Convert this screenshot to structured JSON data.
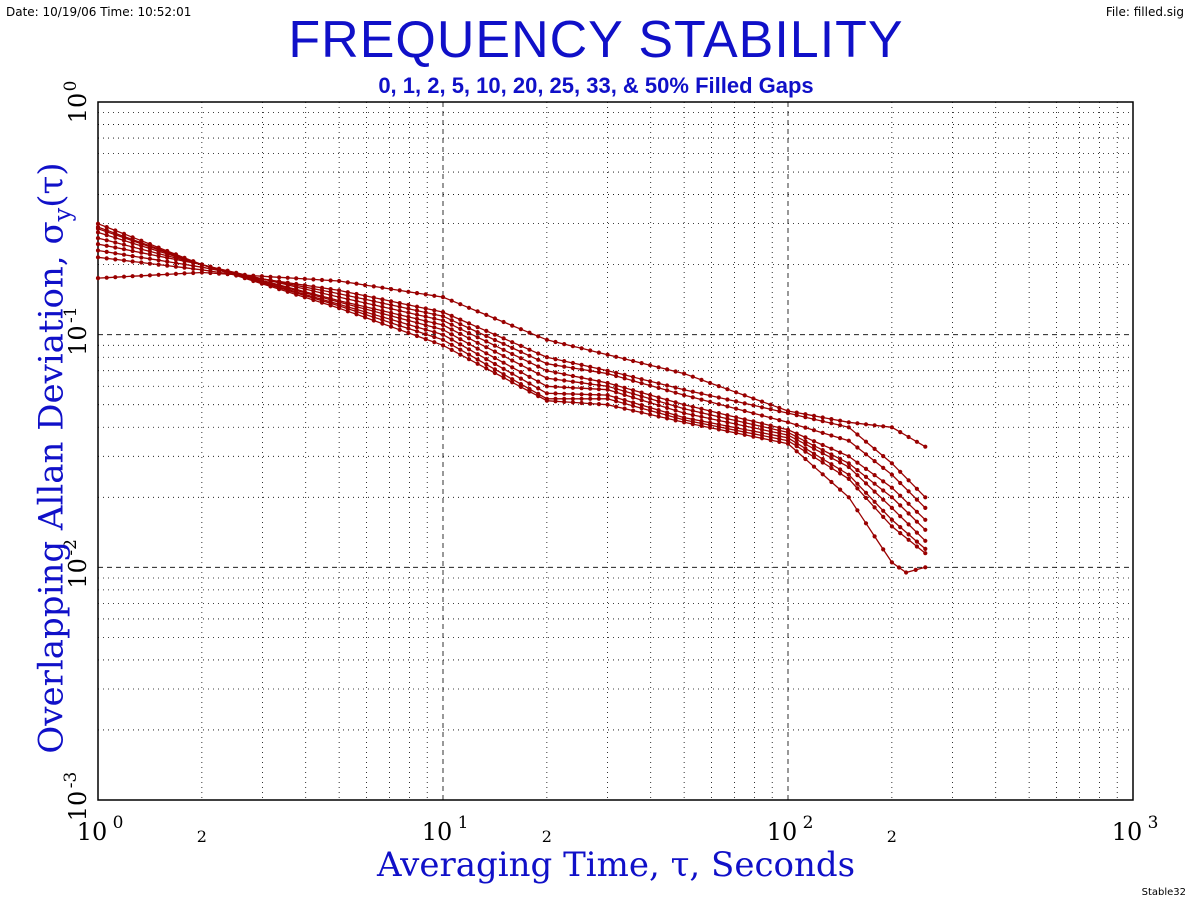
{
  "header": {
    "date_time": "Date: 10/19/06   Time: 10:52:01",
    "file": "File: filled.sig"
  },
  "footer": "Stable32",
  "chart_data": {
    "type": "line",
    "title": "FREQUENCY STABILITY",
    "subtitle": "0, 1, 2, 5, 10, 20, 25, 33, & 50% Filled Gaps",
    "xlabel": "Averaging Time, τ, Seconds",
    "ylabel": "Overlapping Allan Deviation, σy(τ)",
    "xscale": "log",
    "yscale": "log",
    "xlim": [
      1,
      1000
    ],
    "ylim": [
      0.001,
      1
    ],
    "grid": true,
    "x_ticks": [
      {
        "base": "10",
        "exp": "0",
        "value": 1
      },
      {
        "base": "",
        "exp": "2",
        "value": 2
      },
      {
        "base": "10",
        "exp": "1",
        "value": 10
      },
      {
        "base": "",
        "exp": "2",
        "value": 20
      },
      {
        "base": "10",
        "exp": "2",
        "value": 100
      },
      {
        "base": "",
        "exp": "2",
        "value": 200
      },
      {
        "base": "10",
        "exp": "3",
        "value": 1000
      }
    ],
    "y_ticks": [
      {
        "base": "10",
        "exp": "0",
        "value": 1
      },
      {
        "base": "10",
        "exp": "-1",
        "value": 0.1
      },
      {
        "base": "10",
        "exp": "-2",
        "value": 0.01
      },
      {
        "base": "10",
        "exp": "-3",
        "value": 0.001
      }
    ],
    "color": "#990000",
    "series": [
      {
        "x": [
          1,
          2,
          5,
          10,
          20,
          30,
          50,
          100,
          150,
          200,
          250
        ],
        "y": [
          0.175,
          0.185,
          0.17,
          0.145,
          0.095,
          0.082,
          0.068,
          0.047,
          0.042,
          0.04,
          0.033
        ]
      },
      {
        "x": [
          1,
          2,
          5,
          10,
          20,
          30,
          50,
          100,
          150,
          200,
          250
        ],
        "y": [
          0.215,
          0.19,
          0.155,
          0.125,
          0.08,
          0.07,
          0.058,
          0.046,
          0.04,
          0.028,
          0.02
        ]
      },
      {
        "x": [
          1,
          2,
          5,
          10,
          20,
          30,
          50,
          100,
          150,
          200,
          250
        ],
        "y": [
          0.23,
          0.195,
          0.15,
          0.12,
          0.075,
          0.068,
          0.055,
          0.042,
          0.035,
          0.025,
          0.018
        ]
      },
      {
        "x": [
          1,
          2,
          5,
          10,
          20,
          30,
          50,
          100,
          150,
          200,
          250
        ],
        "y": [
          0.245,
          0.2,
          0.145,
          0.115,
          0.07,
          0.062,
          0.05,
          0.039,
          0.03,
          0.022,
          0.016
        ]
      },
      {
        "x": [
          1,
          2,
          5,
          10,
          20,
          30,
          50,
          100,
          150,
          200,
          250
        ],
        "y": [
          0.26,
          0.2,
          0.14,
          0.11,
          0.065,
          0.06,
          0.048,
          0.038,
          0.028,
          0.02,
          0.0145
        ]
      },
      {
        "x": [
          1,
          2,
          5,
          10,
          20,
          30,
          50,
          100,
          150,
          200,
          250
        ],
        "y": [
          0.275,
          0.2,
          0.138,
          0.105,
          0.06,
          0.058,
          0.046,
          0.037,
          0.027,
          0.018,
          0.013
        ]
      },
      {
        "x": [
          1,
          2,
          5,
          10,
          20,
          30,
          50,
          100,
          150,
          200,
          250
        ],
        "y": [
          0.285,
          0.2,
          0.135,
          0.1,
          0.056,
          0.055,
          0.044,
          0.036,
          0.025,
          0.016,
          0.012
        ]
      },
      {
        "x": [
          1,
          2,
          5,
          10,
          20,
          30,
          50,
          100,
          150,
          200,
          250
        ],
        "y": [
          0.29,
          0.2,
          0.133,
          0.095,
          0.053,
          0.053,
          0.043,
          0.035,
          0.024,
          0.015,
          0.0115
        ]
      },
      {
        "x": [
          1,
          2,
          5,
          10,
          20,
          30,
          50,
          100,
          150,
          200,
          220,
          250
        ],
        "y": [
          0.3,
          0.2,
          0.13,
          0.09,
          0.052,
          0.05,
          0.042,
          0.034,
          0.02,
          0.0105,
          0.0095,
          0.01
        ]
      }
    ]
  }
}
